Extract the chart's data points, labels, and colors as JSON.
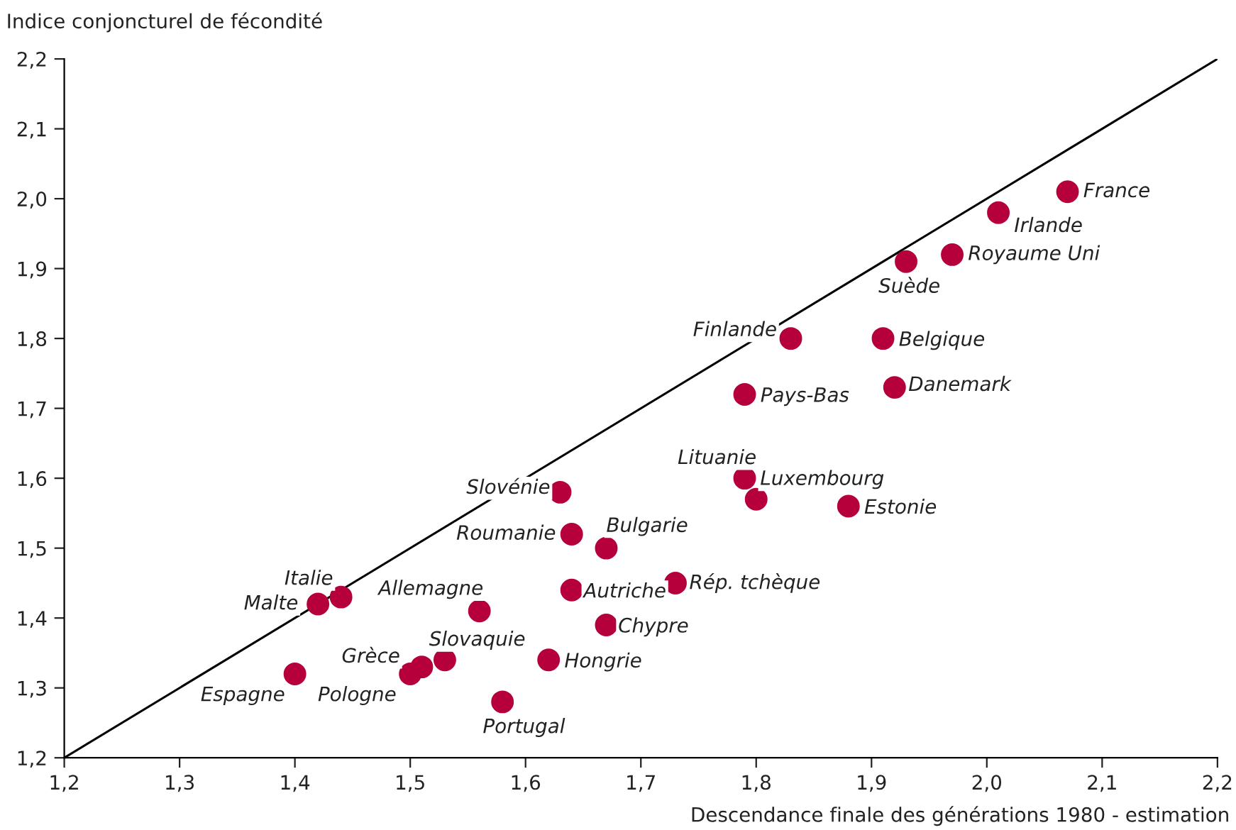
{
  "chart_data": {
    "type": "scatter",
    "ylabel": "Indice conjoncturel de fécondité",
    "xlabel": "Descendance finale des générations 1980 - estimation",
    "xlim": [
      1.2,
      2.2
    ],
    "ylim": [
      1.2,
      2.2
    ],
    "xticks": [
      {
        "value": 1.2,
        "label": "1,2"
      },
      {
        "value": 1.3,
        "label": "1,3"
      },
      {
        "value": 1.4,
        "label": "1,4"
      },
      {
        "value": 1.5,
        "label": "1,5"
      },
      {
        "value": 1.6,
        "label": "1,6"
      },
      {
        "value": 1.7,
        "label": "1,7"
      },
      {
        "value": 1.8,
        "label": "1,8"
      },
      {
        "value": 1.9,
        "label": "1,9"
      },
      {
        "value": 2.0,
        "label": "2,0"
      },
      {
        "value": 2.1,
        "label": "2,1"
      },
      {
        "value": 2.2,
        "label": "2,2"
      }
    ],
    "yticks": [
      {
        "value": 1.2,
        "label": "1,2"
      },
      {
        "value": 1.3,
        "label": "1,3"
      },
      {
        "value": 1.4,
        "label": "1,4"
      },
      {
        "value": 1.5,
        "label": "1,5"
      },
      {
        "value": 1.6,
        "label": "1,6"
      },
      {
        "value": 1.7,
        "label": "1,7"
      },
      {
        "value": 1.8,
        "label": "1,8"
      },
      {
        "value": 1.9,
        "label": "1,9"
      },
      {
        "value": 2.0,
        "label": "2,0"
      },
      {
        "value": 2.1,
        "label": "2,1"
      },
      {
        "value": 2.2,
        "label": "2,2"
      }
    ],
    "grid": false,
    "legend": false,
    "series": [
      {
        "marker": "circle",
        "color": "#b5003c",
        "x": [
          2.07,
          2.01,
          1.97,
          1.93,
          1.91,
          1.92,
          1.83,
          1.79,
          1.79,
          1.8,
          1.88,
          1.63,
          1.64,
          1.67,
          1.64,
          1.73,
          1.56,
          1.67,
          1.44,
          1.42,
          1.4,
          1.51,
          1.5,
          1.53,
          1.62,
          1.58
        ],
        "values": [
          2.01,
          1.98,
          1.92,
          1.91,
          1.8,
          1.73,
          1.8,
          1.72,
          1.6,
          1.57,
          1.56,
          1.58,
          1.52,
          1.5,
          1.44,
          1.45,
          1.41,
          1.39,
          1.43,
          1.42,
          1.32,
          1.33,
          1.32,
          1.34,
          1.34,
          1.28
        ]
      },
      {
        "type": "line",
        "color": "#000000",
        "x": [
          1.2,
          2.2
        ],
        "values": [
          1.2,
          2.2
        ]
      }
    ],
    "annotations": [
      {
        "text": "France",
        "x": 2.07,
        "y": 2.01
      },
      {
        "text": "Irlande",
        "x": 2.01,
        "y": 1.98
      },
      {
        "text": "Royaume Uni",
        "x": 1.97,
        "y": 1.92
      },
      {
        "text": "Suède",
        "x": 1.93,
        "y": 1.91
      },
      {
        "text": "Belgique",
        "x": 1.91,
        "y": 1.8
      },
      {
        "text": "Danemark",
        "x": 1.92,
        "y": 1.73
      },
      {
        "text": "Finlande",
        "x": 1.83,
        "y": 1.8
      },
      {
        "text": "Pays-Bas",
        "x": 1.79,
        "y": 1.72
      },
      {
        "text": "Lituanie",
        "x": 1.79,
        "y": 1.6
      },
      {
        "text": "Luxembourg",
        "x": 1.8,
        "y": 1.57
      },
      {
        "text": "Estonie",
        "x": 1.88,
        "y": 1.56
      },
      {
        "text": "Slovénie",
        "x": 1.63,
        "y": 1.58
      },
      {
        "text": "Roumanie",
        "x": 1.64,
        "y": 1.52
      },
      {
        "text": "Bulgarie",
        "x": 1.67,
        "y": 1.5
      },
      {
        "text": "Autriche",
        "x": 1.64,
        "y": 1.44
      },
      {
        "text": "Rép. tchèque",
        "x": 1.73,
        "y": 1.45
      },
      {
        "text": "Allemagne",
        "x": 1.56,
        "y": 1.41
      },
      {
        "text": "Chypre",
        "x": 1.67,
        "y": 1.39
      },
      {
        "text": "Italie",
        "x": 1.44,
        "y": 1.43
      },
      {
        "text": "Malte",
        "x": 1.42,
        "y": 1.42
      },
      {
        "text": "Espagne",
        "x": 1.4,
        "y": 1.32
      },
      {
        "text": "Grèce",
        "x": 1.51,
        "y": 1.33
      },
      {
        "text": "Pologne",
        "x": 1.5,
        "y": 1.32
      },
      {
        "text": "Slovaquie",
        "x": 1.53,
        "y": 1.34
      },
      {
        "text": "Hongrie",
        "x": 1.62,
        "y": 1.34
      },
      {
        "text": "Portugal",
        "x": 1.58,
        "y": 1.28
      }
    ]
  }
}
